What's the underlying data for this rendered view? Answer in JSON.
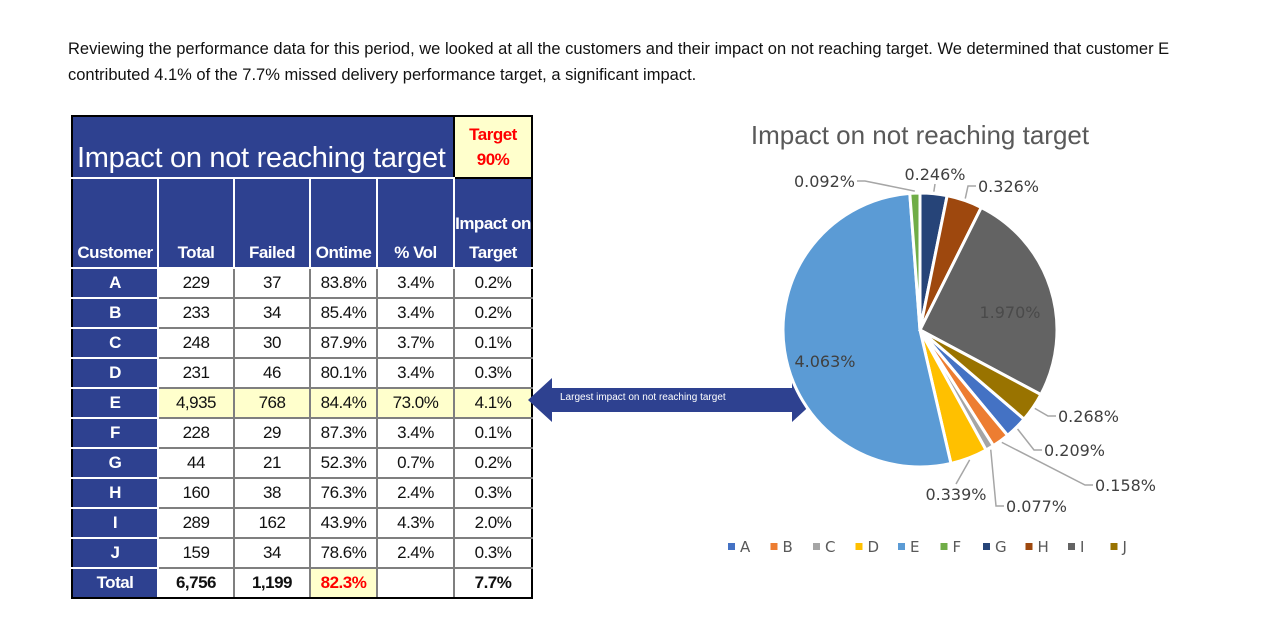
{
  "intro_text": "Reviewing the performance data for this period, we looked at all the customers and their impact on not reaching target. We determined that customer E contributed 4.1% of the 7.7% missed delivery performance target, a significant impact.",
  "table": {
    "title": "Impact on not reaching target",
    "target_label": "Target",
    "target_value": "90%",
    "headers": [
      "Customer",
      "Total",
      "Failed",
      "Ontime",
      "% Vol",
      "Impact on Target"
    ],
    "rows": [
      [
        "A",
        "229",
        "37",
        "83.8%",
        "3.4%",
        "0.2%"
      ],
      [
        "B",
        "233",
        "34",
        "85.4%",
        "3.4%",
        "0.2%"
      ],
      [
        "C",
        "248",
        "30",
        "87.9%",
        "3.7%",
        "0.1%"
      ],
      [
        "D",
        "231",
        "46",
        "80.1%",
        "3.4%",
        "0.3%"
      ],
      [
        "E",
        "4,935",
        "768",
        "84.4%",
        "73.0%",
        "4.1%"
      ],
      [
        "F",
        "228",
        "29",
        "87.3%",
        "3.4%",
        "0.1%"
      ],
      [
        "G",
        "44",
        "21",
        "52.3%",
        "0.7%",
        "0.2%"
      ],
      [
        "H",
        "160",
        "38",
        "76.3%",
        "2.4%",
        "0.3%"
      ],
      [
        "I",
        "289",
        "162",
        "43.9%",
        "4.3%",
        "2.0%"
      ],
      [
        "J",
        "159",
        "34",
        "78.6%",
        "2.4%",
        "0.3%"
      ]
    ],
    "total_row": [
      "Total",
      "6,756",
      "1,199",
      "82.3%",
      "",
      "7.7%"
    ],
    "highlight_row": "E"
  },
  "arrow_label": "Largest impact on not reaching target",
  "chart_data": {
    "type": "pie",
    "title": "Impact on not reaching target",
    "categories": [
      "A",
      "B",
      "C",
      "D",
      "E",
      "F",
      "G",
      "H",
      "I",
      "J"
    ],
    "values": [
      0.209,
      0.158,
      0.077,
      0.339,
      4.063,
      0.092,
      0.246,
      0.326,
      1.97,
      0.268
    ],
    "labels": [
      "0.209%",
      "0.158%",
      "0.077%",
      "0.339%",
      "4.063%",
      "0.092%",
      "0.246%",
      "0.326%",
      "1.970%",
      "0.268%"
    ],
    "colors": [
      "#4472c4",
      "#ed7d31",
      "#a5a5a5",
      "#ffc000",
      "#5b9bd5",
      "#70ad47",
      "#264478",
      "#9e480e",
      "#636363",
      "#997300"
    ],
    "legend_position": "bottom"
  }
}
